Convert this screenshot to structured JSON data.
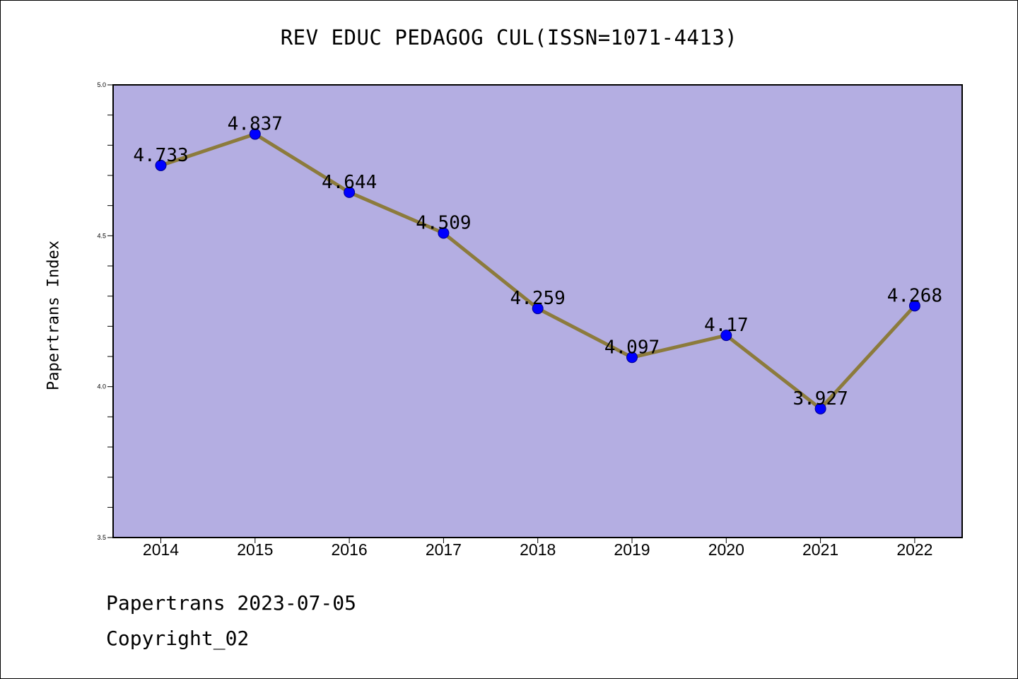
{
  "chart_data": {
    "type": "line",
    "title": "REV EDUC PEDAGOG CUL(ISSN=1071-4413)",
    "ylabel": "Papertrans Index",
    "xlabel": "",
    "categories": [
      "2014",
      "2015",
      "2016",
      "2017",
      "2018",
      "2019",
      "2020",
      "2021",
      "2022"
    ],
    "series": [
      {
        "values": [
          4.733,
          4.837,
          4.644,
          4.509,
          4.259,
          4.097,
          4.17,
          3.927,
          4.268
        ],
        "labels": [
          "4.733",
          "4.837",
          "4.644",
          "4.509",
          "4.259",
          "4.097",
          "4.17",
          "3.927",
          "4.268"
        ]
      }
    ],
    "ylim": [
      3.5,
      5.0
    ],
    "yticks": [
      "3.5",
      "4.0",
      "4.5",
      "5.0"
    ],
    "grid": false,
    "colors": {
      "plot_background": "#b4aee2",
      "line": "#8c7b3c",
      "marker": "#0000ff"
    }
  },
  "footer": {
    "line1": "Papertrans 2023-07-05",
    "line2": "Copyright_02"
  }
}
